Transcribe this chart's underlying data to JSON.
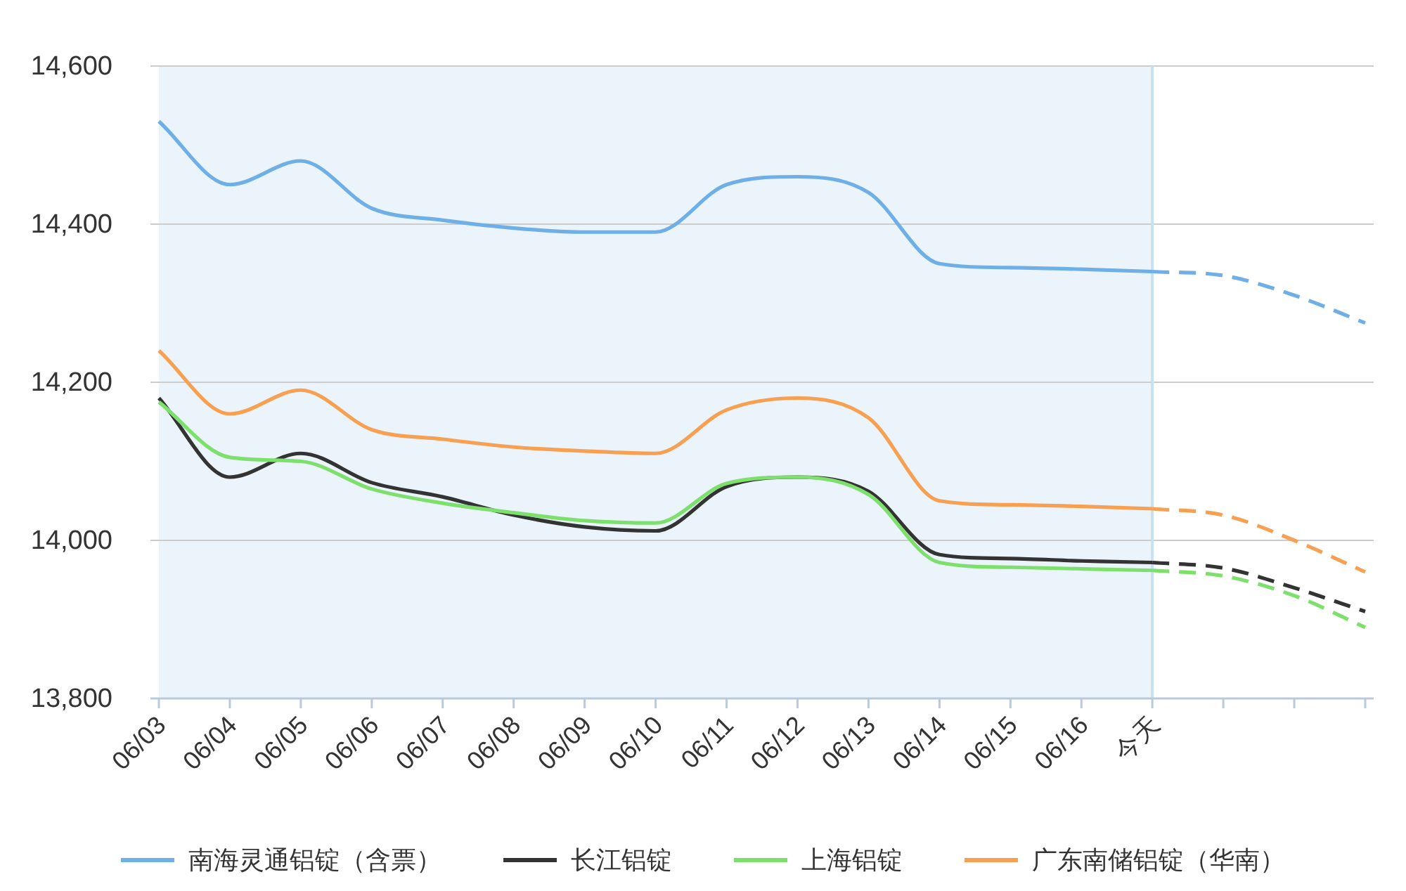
{
  "chart_data": {
    "type": "line",
    "categories": [
      "06/03",
      "06/04",
      "06/05",
      "06/06",
      "06/07",
      "06/08",
      "06/09",
      "06/10",
      "06/11",
      "06/12",
      "06/13",
      "06/14",
      "06/15",
      "06/16",
      "今天",
      null,
      null,
      null
    ],
    "series": [
      {
        "name": "南海灵通铝锭（含票）",
        "color": "#6eafe8",
        "values": [
          14530,
          14450,
          14480,
          14420,
          14405,
          14395,
          14390,
          14390,
          14450,
          14460,
          14440,
          14350,
          14345,
          14343,
          14340,
          null,
          null,
          null
        ]
      },
      {
        "name": "长江铝锭",
        "color": "#333333",
        "values": [
          14180,
          14080,
          14110,
          14073,
          14055,
          14032,
          14017,
          14012,
          14068,
          14080,
          14062,
          13982,
          13977,
          13974,
          13972,
          null,
          null,
          null
        ]
      },
      {
        "name": "上海铝锭",
        "color": "#7ee06c",
        "values": [
          14175,
          14105,
          14100,
          14065,
          14047,
          14035,
          14025,
          14022,
          14072,
          14080,
          14058,
          13972,
          13966,
          13964,
          13962,
          null,
          null,
          null
        ]
      },
      {
        "name": "广东南储铝锭（华南）",
        "color": "#f7a052",
        "values": [
          14240,
          14160,
          14190,
          14140,
          14128,
          14118,
          14113,
          14110,
          14165,
          14180,
          14155,
          14050,
          14045,
          14043,
          14040,
          null,
          null,
          null
        ]
      },
      {
        "color": "#6eafe8",
        "line_style": "dashed",
        "values": [
          null,
          null,
          null,
          null,
          null,
          null,
          null,
          null,
          null,
          null,
          null,
          null,
          null,
          null,
          14340,
          14335,
          14310,
          14275
        ]
      },
      {
        "color": "#333333",
        "line_style": "dashed",
        "values": [
          null,
          null,
          null,
          null,
          null,
          null,
          null,
          null,
          null,
          null,
          null,
          null,
          null,
          null,
          13972,
          13965,
          13940,
          13910
        ]
      },
      {
        "color": "#7ee06c",
        "line_style": "dashed",
        "values": [
          null,
          null,
          null,
          null,
          null,
          null,
          null,
          null,
          null,
          null,
          null,
          null,
          null,
          null,
          13962,
          13955,
          13930,
          13890
        ]
      },
      {
        "color": "#f7a052",
        "line_style": "dashed",
        "values": [
          null,
          null,
          null,
          null,
          null,
          null,
          null,
          null,
          null,
          null,
          null,
          null,
          null,
          null,
          14040,
          14032,
          14000,
          13960
        ]
      }
    ],
    "ylim": [
      13800,
      14600
    ],
    "yticks": [
      {
        "value": 13800,
        "label": "13,800"
      },
      {
        "value": 14000,
        "label": "14,000"
      },
      {
        "value": 14200,
        "label": "14,200"
      },
      {
        "value": 14400,
        "label": "14,400"
      },
      {
        "value": 14600,
        "label": "14,600"
      }
    ],
    "bands": [
      {
        "axis": "x",
        "from": "06/03",
        "to": "今天",
        "color": "#ebf4fb"
      }
    ],
    "ref_lines": [
      {
        "axis": "x",
        "value": "今天",
        "color": "#c8e0f2"
      }
    ],
    "grid": "y",
    "legend": "bottom",
    "line_style": "solid"
  }
}
